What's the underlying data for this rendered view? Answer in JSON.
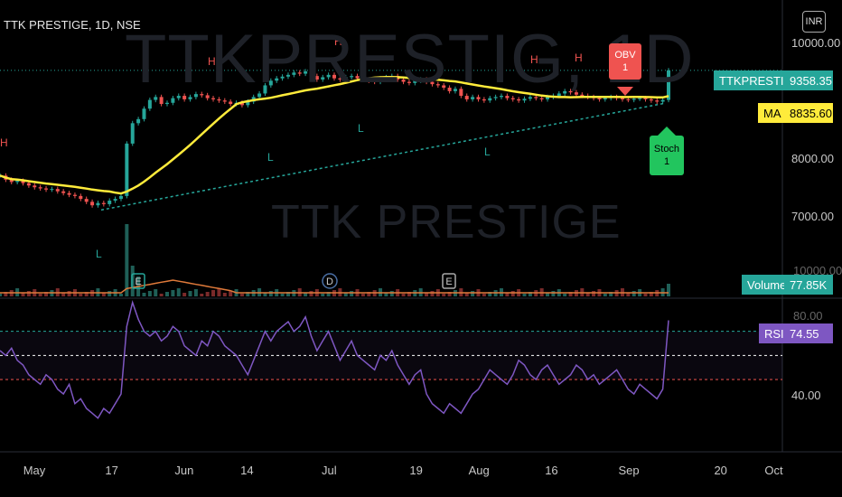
{
  "header": {
    "title": "TTK PRESTIGE, 1D, NSE"
  },
  "watermark": {
    "big": "TTKPRESTIG, 1D",
    "small": "TTK PRESTIGE"
  },
  "currency": "INR",
  "price_axis": {
    "ticks": [
      {
        "value": 10000,
        "label": "10000.00"
      },
      {
        "value": 8000,
        "label": "8000.00"
      },
      {
        "value": 7000,
        "label": "7000.00"
      }
    ],
    "current": {
      "name": "TTKPRESTIG",
      "value": "9358.35",
      "color": "#26a69a"
    },
    "ma": {
      "name": "MA",
      "value": "8835.60",
      "color": "#ffeb3b"
    }
  },
  "volume_tag": {
    "name": "Volume",
    "value": "77.85K",
    "color": "#26a69a"
  },
  "rsi_tag": {
    "name": "RSI",
    "value": "74.55",
    "color": "#7e57c2"
  },
  "rsi_axis": {
    "label": "40.00",
    "top_label": "80.00"
  },
  "x_axis": {
    "labels": [
      {
        "text": "May",
        "day": 0
      },
      {
        "text": "17",
        "day": 16
      },
      {
        "text": "Jun",
        "day": 31
      },
      {
        "text": "14",
        "day": 44
      },
      {
        "text": "Jul",
        "day": 61
      },
      {
        "text": "19",
        "day": 79
      },
      {
        "text": "Aug",
        "day": 92
      },
      {
        "text": "16",
        "day": 107
      },
      {
        "text": "Sep",
        "day": 123
      },
      {
        "text": "20",
        "day": 142
      },
      {
        "text": "Oct",
        "day": 153
      }
    ]
  },
  "signals": [
    {
      "text": "OBV\n1",
      "color": "#ef5350"
    },
    {
      "text": "Stoch\n1",
      "color": "#22c55e"
    }
  ],
  "event_markers": [
    "E",
    "D",
    "E"
  ],
  "pivot_labels": {
    "high": "H",
    "low": "L"
  },
  "chart_data": {
    "type": "candlestick",
    "symbol": "TTK PRESTIGE",
    "interval": "1D",
    "exchange": "NSE",
    "closes": [
      7550,
      7480,
      7440,
      7460,
      7420,
      7380,
      7350,
      7330,
      7310,
      7320,
      7280,
      7250,
      7220,
      7200,
      7150,
      7100,
      7040,
      7080,
      7060,
      7120,
      7150,
      7200,
      8100,
      8450,
      8520,
      8700,
      8850,
      8900,
      8780,
      8800,
      8880,
      8920,
      8860,
      8900,
      8950,
      8930,
      8880,
      8860,
      8840,
      8820,
      8780,
      8800,
      8760,
      8820,
      8900,
      8960,
      9100,
      9180,
      9220,
      9250,
      9280,
      9320,
      9300,
      9340,
      9260,
      9200,
      9240,
      9280,
      9220,
      9200,
      9240,
      9260,
      9220,
      9200,
      9180,
      9160,
      9220,
      9240,
      9260,
      9200,
      9160,
      9140,
      9180,
      9200,
      9160,
      9120,
      9100,
      9060,
      9000,
      9040,
      8920,
      8860,
      8900,
      8860,
      8840,
      8880,
      8900,
      8920,
      8880,
      8860,
      8840,
      8870,
      8900,
      8880,
      8860,
      8900,
      8920,
      8960,
      9000,
      8980,
      8940,
      8920,
      8900,
      8880,
      8860,
      8880,
      8900,
      8880,
      8860,
      8850,
      8870,
      8880,
      8860,
      8840,
      8820,
      8850,
      9358
    ],
    "rsi": [
      62,
      60,
      63,
      58,
      56,
      52,
      50,
      48,
      52,
      50,
      46,
      44,
      48,
      40,
      42,
      38,
      36,
      34,
      38,
      36,
      40,
      44,
      72,
      82,
      75,
      70,
      68,
      70,
      66,
      68,
      72,
      70,
      64,
      62,
      60,
      66,
      64,
      70,
      68,
      64,
      62,
      60,
      56,
      52,
      58,
      64,
      70,
      66,
      70,
      72,
      74,
      70,
      72,
      76,
      68,
      62,
      66,
      70,
      64,
      58,
      62,
      66,
      60,
      58,
      56,
      54,
      60,
      58,
      62,
      56,
      52,
      48,
      52,
      54,
      44,
      40,
      38,
      36,
      40,
      38,
      36,
      40,
      44,
      46,
      50,
      54,
      52,
      50,
      48,
      52,
      58,
      56,
      52,
      50,
      54,
      56,
      52,
      48,
      50,
      52,
      56,
      54,
      50,
      52,
      48,
      50,
      52,
      54,
      50,
      46,
      44,
      48,
      46,
      44,
      42,
      46,
      74.55
    ],
    "rsi_levels": {
      "upper": 70,
      "middle": 60,
      "lower": 50
    },
    "rsi_scale": {
      "min": 20,
      "max": 80
    },
    "price_scale": {
      "min": 6500,
      "max": 10100
    }
  }
}
